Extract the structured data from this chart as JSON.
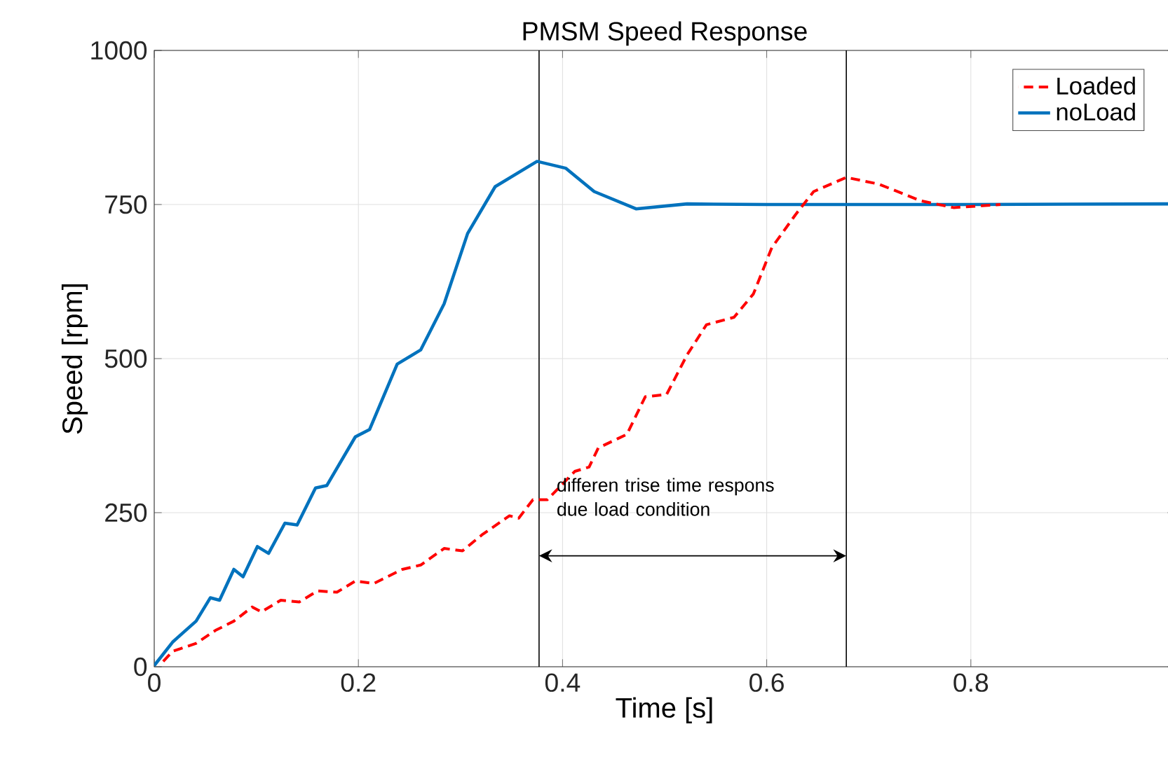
{
  "chart_data": {
    "type": "line",
    "title": "PMSM Speed Response",
    "xlabel": "Time [s]",
    "ylabel": "Speed [rpm]",
    "xlim": [
      0,
      1
    ],
    "ylim": [
      0,
      1000
    ],
    "xticks": [
      0,
      0.2,
      0.4,
      0.6,
      0.8,
      {
        "value": 1,
        "label": null
      }
    ],
    "yticks": [
      0,
      250,
      500,
      750,
      1000
    ],
    "grid": true,
    "legend": "top right",
    "marker": "none",
    "series": [
      {
        "name": "Loaded",
        "color": "#ff0000",
        "line_style": "dashed",
        "x": [
          0.005,
          0.018,
          0.041,
          0.06,
          0.078,
          0.096,
          0.105,
          0.124,
          0.142,
          0.16,
          0.179,
          0.197,
          0.215,
          0.243,
          0.261,
          0.284,
          0.302,
          0.321,
          0.348,
          0.357,
          0.371,
          0.385,
          0.412,
          0.426,
          0.435,
          0.454,
          0.463,
          0.481,
          0.502,
          0.522,
          0.541,
          0.568,
          0.587,
          0.605,
          0.628,
          0.646,
          0.678,
          0.71,
          0.751,
          0.783,
          0.811,
          0.829
        ],
        "values": [
          2,
          25,
          38,
          59,
          74,
          97,
          89,
          108,
          105,
          123,
          121,
          139,
          135,
          158,
          165,
          192,
          188,
          214,
          245,
          241,
          271,
          271,
          317,
          324,
          355,
          370,
          377,
          438,
          442,
          506,
          555,
          567,
          605,
          680,
          733,
          771,
          794,
          783,
          756,
          745,
          748,
          750
        ]
      },
      {
        "name": "noLoad",
        "color": "#0072bd",
        "line_style": "solid",
        "x": [
          0,
          0.018,
          0.041,
          0.055,
          0.064,
          0.078,
          0.087,
          0.101,
          0.112,
          0.128,
          0.14,
          0.158,
          0.169,
          0.197,
          0.211,
          0.238,
          0.261,
          0.284,
          0.307,
          0.334,
          0.375,
          0.403,
          0.431,
          0.472,
          0.522,
          0.6,
          0.8,
          0.994
        ],
        "values": [
          2,
          40,
          74,
          112,
          108,
          158,
          146,
          195,
          184,
          233,
          230,
          290,
          294,
          373,
          385,
          491,
          514,
          589,
          703,
          779,
          820,
          809,
          771,
          743,
          751,
          750,
          750,
          751
        ]
      }
    ],
    "ref_lines": [
      {
        "axis": "x",
        "value": 0.377,
        "color": "#000000"
      },
      {
        "axis": "x",
        "value": 0.678,
        "color": "#000000"
      }
    ],
    "annotations": [
      "differen trise  time respons due load condition"
    ]
  }
}
